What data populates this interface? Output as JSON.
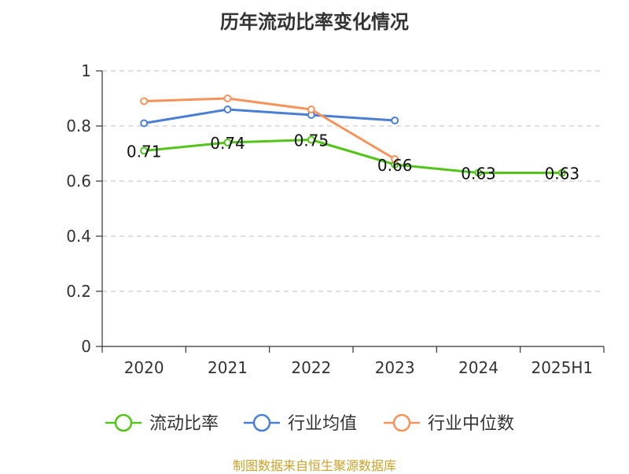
{
  "title": "历年流动比率变化情况",
  "source": "制图数据来自恒生聚源数据库",
  "chart_data": {
    "type": "line",
    "title": "历年流动比率变化情况",
    "categories": [
      "2020",
      "2021",
      "2022",
      "2023",
      "2024",
      "2025H1"
    ],
    "ylim": [
      0,
      1
    ],
    "yticks": [
      0,
      0.2,
      0.4,
      0.6,
      0.8,
      1
    ],
    "ytick_labels": [
      "0",
      "0.2",
      "0.4",
      "0.6",
      "0.8",
      "1"
    ],
    "grid": true,
    "legend_position": "bottom",
    "series": [
      {
        "name": "流动比率",
        "color": "#52c41a",
        "values": [
          0.71,
          0.74,
          0.75,
          0.66,
          0.63,
          0.63
        ],
        "labels": [
          "0.71",
          "0.74",
          "0.75",
          "0.66",
          "0.63",
          "0.63"
        ],
        "marker_fill": "#ffffff"
      },
      {
        "name": "行业均值",
        "color": "#4a7fd4",
        "values": [
          0.81,
          0.86,
          0.84,
          0.82,
          null,
          null
        ],
        "labels": [],
        "marker_fill": "#ffffff"
      },
      {
        "name": "行业中位数",
        "color": "#f5935a",
        "values": [
          0.89,
          0.9,
          0.86,
          0.68,
          null,
          null
        ],
        "labels": [],
        "marker_fill": "#ffffff"
      }
    ]
  }
}
